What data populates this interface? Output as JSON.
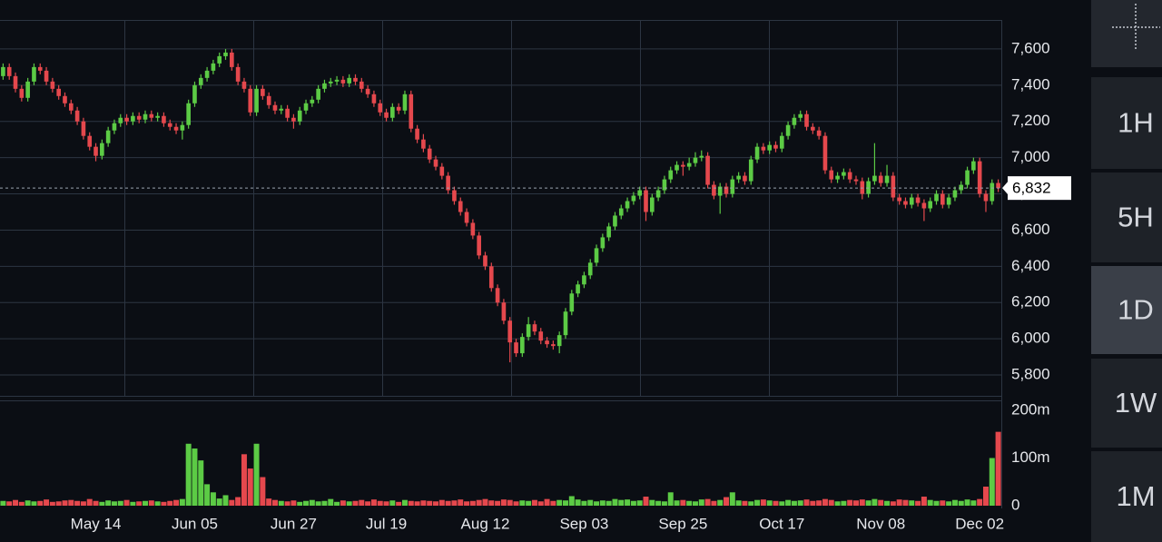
{
  "chart_data": {
    "type": "candlestick",
    "xlim": [
      -0.5,
      161.5
    ],
    "xticks": [
      {
        "value": 15,
        "label": "May 14"
      },
      {
        "value": 31,
        "label": "Jun 05"
      },
      {
        "value": 47,
        "label": "Jun 27"
      },
      {
        "value": 62,
        "label": "Jul 19"
      },
      {
        "value": 78,
        "label": "Aug 12"
      },
      {
        "value": 94,
        "label": "Sep 03"
      },
      {
        "value": 110,
        "label": "Sep 25"
      },
      {
        "value": 126,
        "label": "Oct 17"
      },
      {
        "value": 142,
        "label": "Nov 08"
      },
      {
        "value": 158,
        "label": "Dec 02"
      }
    ],
    "ylim": [
      5685,
      7760
    ],
    "yticks": [
      {
        "value": 5800,
        "label": "5,800"
      },
      {
        "value": 6000,
        "label": "6,000"
      },
      {
        "value": 6200,
        "label": "6,200"
      },
      {
        "value": 6400,
        "label": "6,400"
      },
      {
        "value": 6600,
        "label": "6,600"
      },
      {
        "value": 6800,
        "label": "6,800"
      },
      {
        "value": 7000,
        "label": "7,000"
      },
      {
        "value": 7200,
        "label": "7,200"
      },
      {
        "value": 7400,
        "label": "7,400"
      },
      {
        "value": 7600,
        "label": "7,600"
      }
    ],
    "grid": true,
    "up_color": "#5ccb45",
    "down_color": "#e5484d",
    "open": [
      7450,
      7500,
      7450,
      7380,
      7330,
      7420,
      7500,
      7480,
      7420,
      7380,
      7340,
      7300,
      7260,
      7200,
      7120,
      7060,
      7010,
      7080,
      7150,
      7190,
      7220,
      7200,
      7230,
      7210,
      7240,
      7220,
      7230,
      7190,
      7170,
      7150,
      7180,
      7300,
      7400,
      7440,
      7480,
      7520,
      7560,
      7580,
      7500,
      7420,
      7380,
      7250,
      7380,
      7340,
      7290,
      7260,
      7270,
      7220,
      7200,
      7260,
      7300,
      7320,
      7380,
      7410,
      7420,
      7430,
      7410,
      7440,
      7420,
      7380,
      7350,
      7300,
      7250,
      7220,
      7280,
      7260,
      7350,
      7160,
      7100,
      7050,
      6990,
      6950,
      6900,
      6820,
      6760,
      6700,
      6640,
      6570,
      6460,
      6400,
      6280,
      6200,
      6100,
      5980,
      5920,
      6010,
      6080,
      6040,
      5990,
      5970,
      5960,
      6020,
      6150,
      6250,
      6300,
      6350,
      6420,
      6500,
      6560,
      6620,
      6680,
      6720,
      6760,
      6790,
      6820,
      6700,
      6780,
      6820,
      6880,
      6930,
      6960,
      6950,
      6970,
      7000,
      7010,
      6850,
      6790,
      6840,
      6800,
      6880,
      6900,
      6870,
      6990,
      7060,
      7040,
      7070,
      7050,
      7120,
      7180,
      7220,
      7240,
      7170,
      7150,
      7120,
      6930,
      6880,
      6900,
      6920,
      6880,
      6870,
      6800,
      6870,
      6900,
      6860,
      6900,
      6780,
      6760,
      6740,
      6780,
      6750,
      6720,
      6760,
      6800,
      6740,
      6780,
      6820,
      6850,
      6930,
      6980,
      6800,
      6760,
      6860
    ],
    "high": [
      7520,
      7520,
      7470,
      7400,
      7440,
      7520,
      7520,
      7500,
      7440,
      7400,
      7360,
      7320,
      7280,
      7220,
      7140,
      7080,
      7100,
      7170,
      7210,
      7240,
      7240,
      7250,
      7250,
      7260,
      7260,
      7250,
      7250,
      7210,
      7190,
      7200,
      7320,
      7420,
      7460,
      7500,
      7540,
      7580,
      7600,
      7600,
      7520,
      7440,
      7400,
      7400,
      7400,
      7360,
      7310,
      7290,
      7290,
      7240,
      7280,
      7320,
      7340,
      7400,
      7430,
      7440,
      7450,
      7450,
      7460,
      7460,
      7440,
      7400,
      7370,
      7320,
      7270,
      7300,
      7300,
      7370,
      7370,
      7180,
      7130,
      7070,
      7010,
      6970,
      6920,
      6840,
      6780,
      6720,
      6660,
      6590,
      6480,
      6420,
      6300,
      6220,
      6120,
      6000,
      6030,
      6120,
      6100,
      6060,
      6010,
      5990,
      6040,
      6170,
      6270,
      6320,
      6370,
      6440,
      6520,
      6580,
      6640,
      6700,
      6740,
      6780,
      6810,
      6840,
      6840,
      6800,
      6840,
      6900,
      6950,
      6980,
      6980,
      7000,
      7030,
      7040,
      7030,
      6870,
      6860,
      6860,
      6900,
      6920,
      6920,
      7010,
      7080,
      7080,
      7090,
      7090,
      7140,
      7200,
      7240,
      7260,
      7260,
      7190,
      7170,
      7140,
      6950,
      6920,
      6940,
      6940,
      6900,
      6890,
      6890,
      7080,
      6920,
      6960,
      6920,
      6800,
      6780,
      6800,
      6800,
      6770,
      6780,
      6820,
      6820,
      6800,
      6840,
      6870,
      6950,
      7000,
      7000,
      6820,
      6880,
      6880
    ],
    "low": [
      7430,
      7430,
      7360,
      7310,
      7310,
      7400,
      7460,
      7400,
      7360,
      7320,
      7280,
      7240,
      7180,
      7100,
      7040,
      6980,
      6990,
      7060,
      7130,
      7170,
      7180,
      7180,
      7190,
      7190,
      7200,
      7200,
      7170,
      7150,
      7130,
      7100,
      7160,
      7280,
      7380,
      7420,
      7460,
      7500,
      7540,
      7480,
      7400,
      7360,
      7230,
      7230,
      7320,
      7270,
      7240,
      7240,
      7200,
      7160,
      7180,
      7240,
      7280,
      7300,
      7360,
      7390,
      7400,
      7390,
      7390,
      7400,
      7360,
      7330,
      7280,
      7230,
      7200,
      7200,
      7240,
      7240,
      7140,
      7080,
      7030,
      6970,
      6930,
      6880,
      6800,
      6740,
      6680,
      6620,
      6550,
      6440,
      6380,
      6260,
      6180,
      6080,
      5870,
      5900,
      5900,
      5990,
      6020,
      5970,
      5950,
      5940,
      5920,
      6000,
      6130,
      6230,
      6280,
      6330,
      6400,
      6480,
      6540,
      6600,
      6660,
      6700,
      6740,
      6770,
      6650,
      6680,
      6760,
      6800,
      6860,
      6910,
      6900,
      6930,
      6950,
      6980,
      6830,
      6770,
      6690,
      6780,
      6780,
      6860,
      6850,
      6850,
      6970,
      7020,
      7020,
      7030,
      7030,
      7100,
      7160,
      7200,
      7150,
      7130,
      7100,
      6910,
      6860,
      6860,
      6880,
      6860,
      6850,
      6770,
      6780,
      6850,
      6840,
      6840,
      6760,
      6740,
      6720,
      6720,
      6730,
      6650,
      6700,
      6740,
      6720,
      6720,
      6760,
      6800,
      6830,
      6910,
      6780,
      6700,
      6740,
      6810
    ],
    "close": [
      7500,
      7450,
      7380,
      7330,
      7420,
      7500,
      7480,
      7420,
      7380,
      7340,
      7300,
      7260,
      7200,
      7120,
      7060,
      7010,
      7080,
      7150,
      7190,
      7220,
      7200,
      7230,
      7210,
      7240,
      7220,
      7230,
      7190,
      7170,
      7150,
      7180,
      7300,
      7400,
      7440,
      7480,
      7520,
      7560,
      7580,
      7500,
      7420,
      7380,
      7250,
      7380,
      7340,
      7290,
      7260,
      7270,
      7220,
      7200,
      7260,
      7300,
      7320,
      7380,
      7410,
      7420,
      7430,
      7410,
      7440,
      7420,
      7380,
      7350,
      7300,
      7250,
      7220,
      7280,
      7260,
      7350,
      7160,
      7100,
      7050,
      6990,
      6950,
      6900,
      6820,
      6760,
      6700,
      6640,
      6570,
      6460,
      6400,
      6280,
      6200,
      6100,
      5980,
      5920,
      6010,
      6080,
      6040,
      5990,
      5970,
      5960,
      6020,
      6150,
      6250,
      6300,
      6350,
      6420,
      6500,
      6560,
      6620,
      6680,
      6720,
      6760,
      6790,
      6820,
      6700,
      6780,
      6820,
      6880,
      6930,
      6960,
      6950,
      6970,
      7000,
      7010,
      6850,
      6790,
      6840,
      6800,
      6880,
      6900,
      6870,
      6990,
      7060,
      7040,
      7070,
      7050,
      7120,
      7180,
      7220,
      7240,
      7170,
      7150,
      7120,
      6930,
      6880,
      6900,
      6920,
      6880,
      6870,
      6800,
      6870,
      6900,
      6860,
      6900,
      6780,
      6760,
      6740,
      6780,
      6750,
      6720,
      6760,
      6800,
      6740,
      6780,
      6820,
      6850,
      6930,
      6980,
      6800,
      6760,
      6860,
      6832
    ],
    "last_price": {
      "value": 6832,
      "label": "6,832"
    },
    "volume": {
      "ylim": [
        0,
        221
      ],
      "yticks": [
        {
          "value": 0,
          "label": "0"
        },
        {
          "value": 100,
          "label": "100m"
        },
        {
          "value": 200,
          "label": "200m"
        }
      ],
      "values": [
        10,
        9,
        12,
        8,
        11,
        9,
        10,
        13,
        8,
        9,
        11,
        12,
        10,
        9,
        14,
        10,
        8,
        11,
        9,
        10,
        12,
        8,
        9,
        10,
        11,
        9,
        8,
        10,
        12,
        14,
        130,
        120,
        95,
        45,
        28,
        15,
        22,
        12,
        18,
        108,
        78,
        130,
        60,
        15,
        12,
        10,
        9,
        11,
        8,
        10,
        12,
        9,
        10,
        14,
        8,
        11,
        9,
        10,
        12,
        9,
        13,
        10,
        9,
        11,
        8,
        12,
        10,
        9,
        11,
        10,
        9,
        12,
        10,
        11,
        13,
        9,
        10,
        12,
        14,
        11,
        10,
        13,
        12,
        9,
        11,
        10,
        12,
        9,
        14,
        10,
        12,
        11,
        20,
        13,
        10,
        12,
        9,
        11,
        10,
        14,
        12,
        13,
        10,
        11,
        19,
        12,
        10,
        9,
        28,
        11,
        12,
        10,
        9,
        13,
        14,
        10,
        12,
        18,
        28,
        11,
        10,
        9,
        12,
        13,
        11,
        10,
        9,
        12,
        10,
        11,
        13,
        10,
        11,
        14,
        12,
        9,
        10,
        12,
        11,
        13,
        11,
        14,
        12,
        10,
        9,
        13,
        12,
        11,
        10,
        19,
        12,
        10,
        11,
        9,
        12,
        10,
        13,
        11,
        14,
        40,
        100,
        155
      ]
    }
  },
  "toolbar": {
    "buttons": [
      "1H",
      "5H",
      "1D",
      "1W",
      "1M"
    ],
    "selected": 2
  }
}
